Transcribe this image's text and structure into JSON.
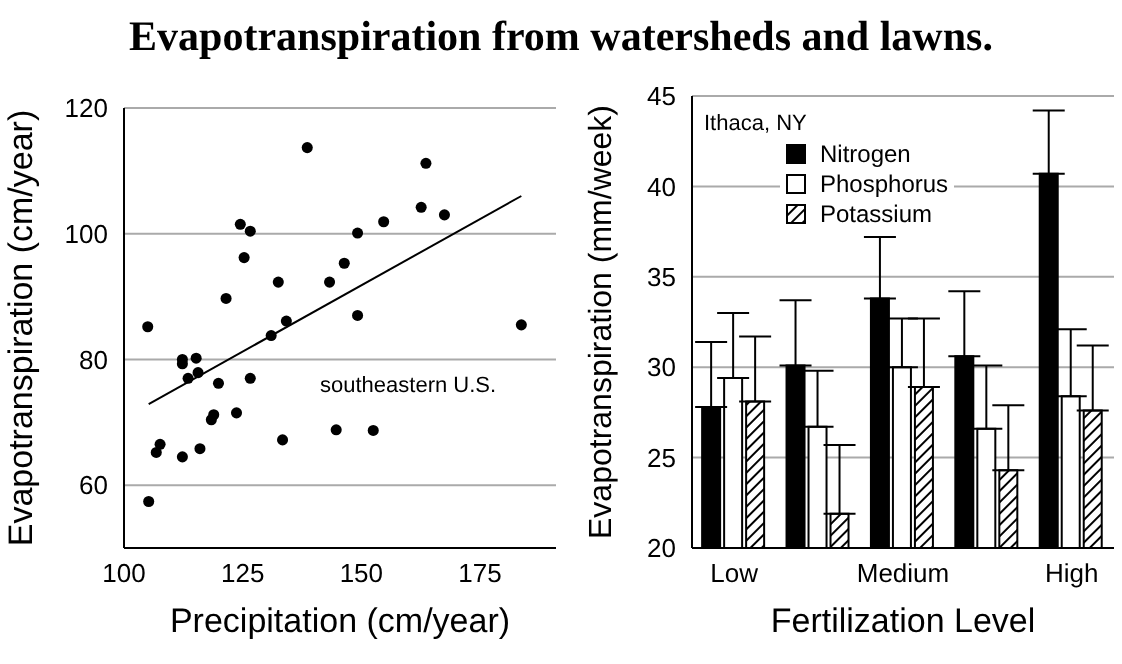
{
  "chart_data": [
    {
      "type": "scatter",
      "title": "Evapotranspiration from watersheds and lawns.",
      "xlabel": "Precipitation (cm/year)",
      "ylabel": "Evapotranspiration (cm/year)",
      "xlim": [
        100,
        191
      ],
      "xticks": [
        100,
        125,
        150,
        175
      ],
      "ylim": [
        50,
        120
      ],
      "yticks": [
        60,
        80,
        100,
        120
      ],
      "grid": "y",
      "marker": "circle",
      "annotations": [
        "southeastern U.S."
      ],
      "series": [
        {
          "type": "scatter",
          "color": "#000000",
          "x": [
            105,
            105.2,
            106.8,
            107.6,
            112.3,
            112.3,
            112.3,
            113.5,
            115.2,
            115.6,
            116,
            118.4,
            118.9,
            119.9,
            121.5,
            123.7,
            124.5,
            125.3,
            126.6,
            126.6,
            131,
            132.5,
            133.4,
            134.2,
            138.6,
            143.3,
            144.7,
            146.4,
            149.2,
            149.2,
            152.5,
            154.7,
            162.6,
            163.6,
            167.5,
            183.7
          ],
          "values": [
            85.2,
            57.4,
            65.2,
            66.5,
            64.5,
            80,
            79.3,
            77,
            80.2,
            77.9,
            65.8,
            70.4,
            71.2,
            76.2,
            89.7,
            71.5,
            101.5,
            96.2,
            100.4,
            77,
            83.8,
            92.3,
            67.2,
            86.1,
            113.7,
            92.3,
            68.8,
            95.3,
            100.1,
            87,
            68.7,
            101.9,
            104.2,
            111.2,
            103,
            85.5
          ]
        },
        {
          "type": "line",
          "marker": "none",
          "color": "#000000",
          "x": [
            105.2,
            183.7
          ],
          "values": [
            72.9,
            106
          ]
        }
      ]
    },
    {
      "type": "bar",
      "xlabel": "Fertilization Level",
      "ylabel": "Evapotranspiration (mm/week)",
      "categories": [
        "Low",
        null,
        "Medium",
        null,
        "High"
      ],
      "ylim": [
        20,
        45
      ],
      "yticks": [
        20,
        25,
        30,
        35,
        40,
        45
      ],
      "grid": "y",
      "legend": "top",
      "annotations": [
        "Ithaca, NY"
      ],
      "series": [
        {
          "name": "Nitrogen",
          "color": "#000000",
          "values": [
            27.8,
            30.1,
            33.8,
            30.6,
            40.7
          ],
          "errors": [
            [
              27.8,
              31.4
            ],
            [
              30.1,
              33.7
            ],
            [
              33.8,
              37.2
            ],
            [
              30.6,
              34.2
            ],
            [
              40.7,
              44.2
            ]
          ]
        },
        {
          "name": "Phosphorus",
          "color": "#ffffff",
          "values": [
            29.4,
            26.7,
            30,
            26.6,
            28.4
          ],
          "errors": [
            [
              29.4,
              33
            ],
            [
              26.7,
              29.8
            ],
            [
              30,
              32.7
            ],
            [
              26.6,
              30.1
            ],
            [
              28.4,
              32.1
            ]
          ]
        },
        {
          "name": "Potassium",
          "color": "#000000",
          "values": [
            28.1,
            21.9,
            28.9,
            24.3,
            27.6
          ],
          "errors": [
            [
              28.1,
              31.7
            ],
            [
              21.9,
              25.7
            ],
            [
              28.9,
              32.7
            ],
            [
              24.3,
              27.9
            ],
            [
              27.6,
              31.2
            ]
          ]
        }
      ]
    }
  ]
}
